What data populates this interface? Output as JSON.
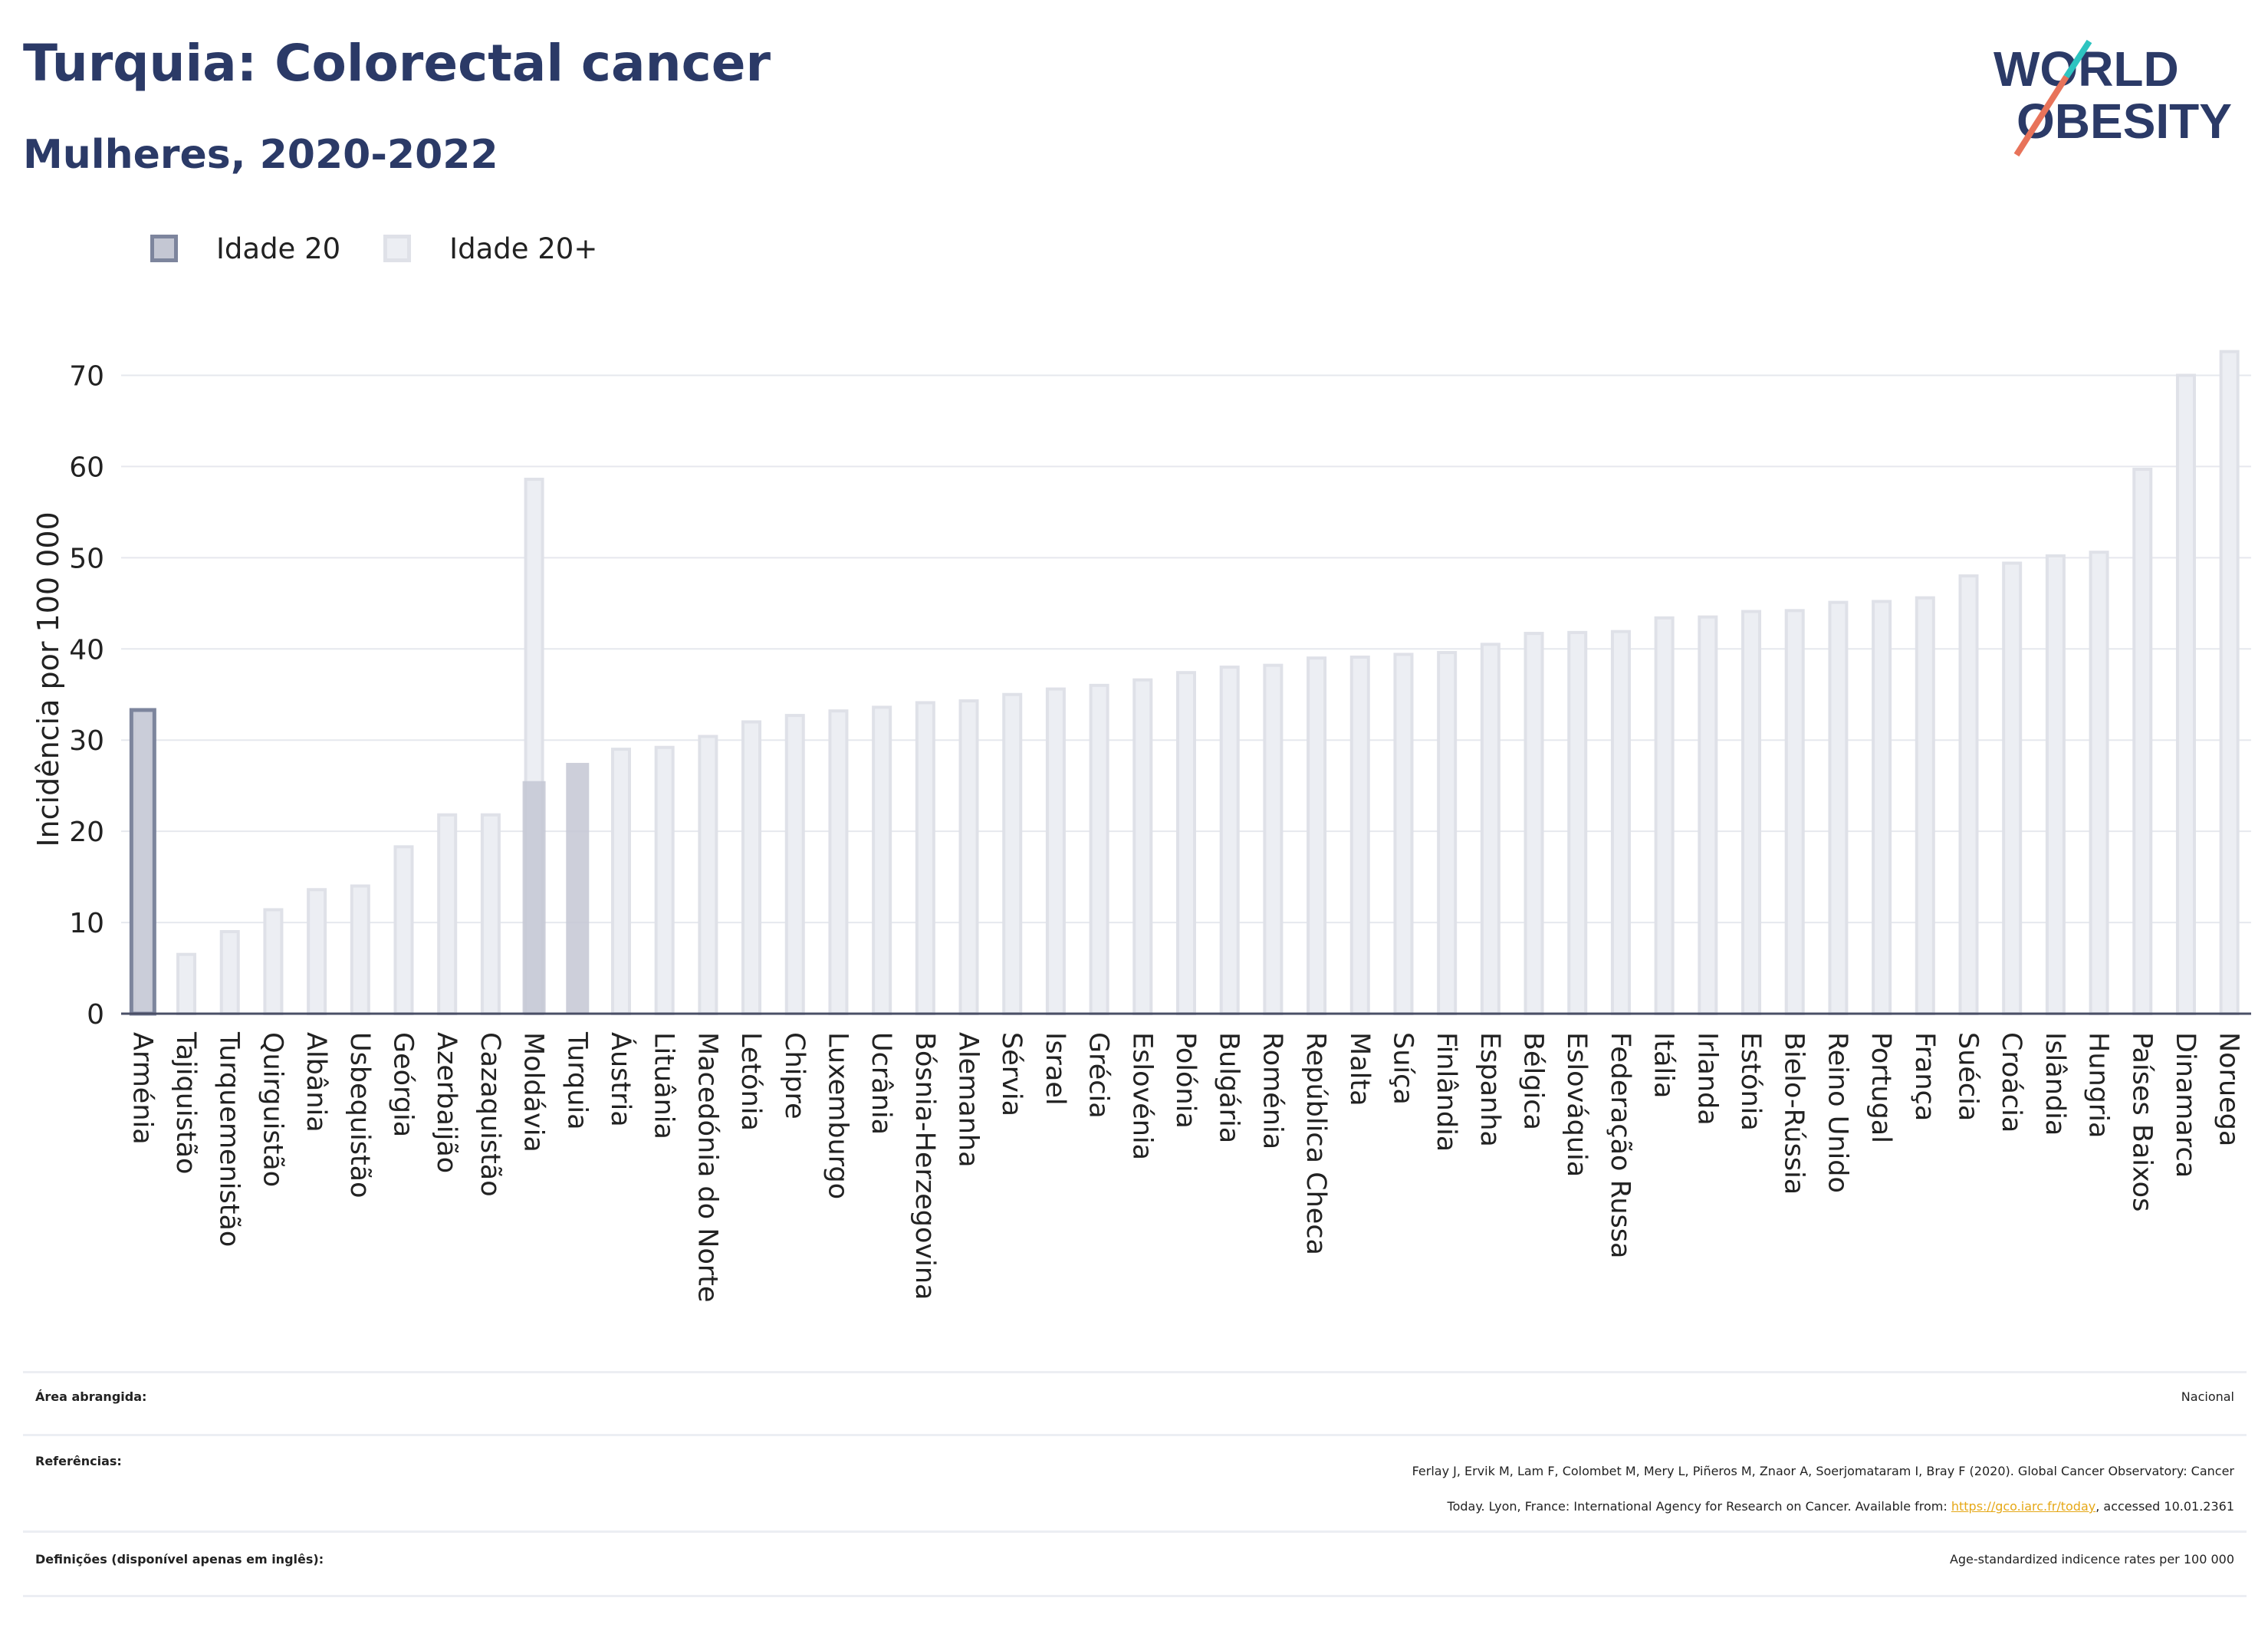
{
  "header": {
    "title": "Turquia: Colorectal cancer",
    "subtitle": "Mulheres, 2020-2022"
  },
  "logo": {
    "line1": "WORLD",
    "line2": "OBESITY"
  },
  "colors": {
    "title": "#2b3a67",
    "idade20_fill": "#c4c7d3",
    "idade20_edge": "#7d859d",
    "idade20p_fill": "#eceef3",
    "idade20p_edge": "#dfe1e8",
    "grid": "#e6e8ee",
    "link": "#e6a817"
  },
  "chart_data": {
    "type": "bar",
    "ylabel": "Incidência por 100 000",
    "ylim": [
      0,
      75
    ],
    "yticks": [
      0,
      10,
      20,
      30,
      40,
      50,
      60,
      70
    ],
    "grid": true,
    "legend_position": "top-left",
    "categories": [
      "Arménia",
      "Tajiquistão",
      "Turquemenistão",
      "Quirguistão",
      "Albânia",
      "Usbequistão",
      "Geórgia",
      "Azerbaijão",
      "Cazaquistão",
      "Moldávia",
      "Turquia",
      "Áustria",
      "Lituânia",
      "Macedónia do Norte",
      "Letónia",
      "Chipre",
      "Luxemburgo",
      "Ucrânia",
      "Bósnia-Herzegovina",
      "Alemanha",
      "Sérvia",
      "Israel",
      "Grécia",
      "Eslovénia",
      "Polónia",
      "Bulgária",
      "Roménia",
      "República Checa",
      "Malta",
      "Suíça",
      "Finlândia",
      "Espanha",
      "Bélgica",
      "Eslováquia",
      "Federação Russa",
      "Itália",
      "Irlanda",
      "Estónia",
      "Bielo-Rússia",
      "Reino Unido",
      "Portugal",
      "França",
      "Suécia",
      "Croácia",
      "Islândia",
      "Hungria",
      "Países Baixos",
      "Dinamarca",
      "Noruega"
    ],
    "series": [
      {
        "name": "Idade 20",
        "values": [
          33.3,
          null,
          null,
          null,
          null,
          null,
          null,
          null,
          null,
          25.5,
          27.5,
          null,
          null,
          null,
          null,
          null,
          null,
          null,
          null,
          null,
          null,
          null,
          null,
          null,
          null,
          null,
          null,
          null,
          null,
          null,
          null,
          null,
          null,
          null,
          null,
          null,
          null,
          null,
          null,
          null,
          null,
          null,
          null,
          null,
          null,
          null,
          null,
          null,
          null
        ]
      },
      {
        "name": "Idade 20+",
        "values": [
          33.3,
          6.5,
          9.0,
          11.4,
          13.6,
          14.0,
          18.3,
          21.8,
          21.8,
          58.6,
          null,
          29.0,
          29.2,
          30.4,
          32.0,
          32.7,
          33.2,
          33.6,
          34.1,
          34.3,
          35.0,
          35.6,
          36.0,
          36.6,
          37.4,
          38.0,
          38.2,
          39.0,
          39.1,
          39.4,
          39.6,
          40.5,
          41.7,
          41.8,
          41.9,
          43.4,
          43.5,
          44.1,
          44.2,
          45.1,
          45.2,
          45.6,
          48.0,
          49.4,
          50.2,
          50.6,
          59.7,
          70.0,
          72.6
        ]
      }
    ]
  },
  "meta": {
    "area_label": "Área abrangida:",
    "area_value": "Nacional",
    "ref_label": "Referências:",
    "ref_line1": "Ferlay J, Ervik M, Lam F, Colombet M, Mery L, Piñeros M, Znaor A, Soerjomataram I, Bray F (2020). Global Cancer Observatory: Cancer",
    "ref_line2_pre": "Today. Lyon, France: International Agency for Research on Cancer. Available from: ",
    "ref_link": "https://gco.iarc.fr/today",
    "ref_line2_post": ", accessed 10.01.2361",
    "def_label": "Definições (disponível apenas em inglês):",
    "def_value": "Age-standardized indicence rates per 100 000"
  }
}
